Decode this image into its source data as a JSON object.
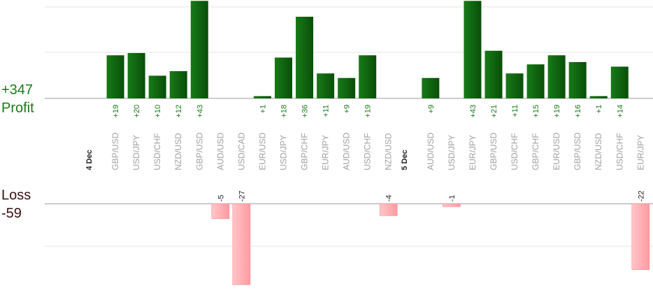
{
  "summary": {
    "profit_total": "+347",
    "profit_label": "Profit",
    "loss_label": "Loss",
    "loss_total": "-59"
  },
  "colors": {
    "profit_bar": "#0f6a0f",
    "loss_bar": "#ffb0b4",
    "profit_text": "#1b7a1b",
    "loss_text": "#3a1010",
    "axis_label": "#a0a0a0",
    "grid": "#e6e6e6"
  },
  "chart_data": {
    "type": "bar",
    "groups": [
      {
        "date_label": "4 Dec",
        "trades": [
          {
            "pair": "GBP/USD",
            "value": 19
          },
          {
            "pair": "USD/JPY",
            "value": 20
          },
          {
            "pair": "USD/CHF",
            "value": 10
          },
          {
            "pair": "NZD/USD",
            "value": 12
          },
          {
            "pair": "GBP/USD",
            "value": 43
          },
          {
            "pair": "AUD/USD",
            "value": -5
          },
          {
            "pair": "USD/CAD",
            "value": -27
          },
          {
            "pair": "EUR/USD",
            "value": 1
          },
          {
            "pair": "USD/JPY",
            "value": 18
          },
          {
            "pair": "GBP/CHF",
            "value": 36
          },
          {
            "pair": "EUR/JPY",
            "value": 11
          },
          {
            "pair": "AUD/USD",
            "value": 9
          },
          {
            "pair": "USD/CHF",
            "value": 19
          },
          {
            "pair": "NZD/USD",
            "value": -4
          }
        ]
      },
      {
        "date_label": "5 Dec",
        "trades": [
          {
            "pair": "AUD/USD",
            "value": 9
          },
          {
            "pair": "USD/JPY",
            "value": -1
          },
          {
            "pair": "EUR/JPY",
            "value": 43
          },
          {
            "pair": "GBP/USD",
            "value": 21
          },
          {
            "pair": "USD/CHF",
            "value": 11
          },
          {
            "pair": "GBP/CHF",
            "value": 15
          },
          {
            "pair": "EUR/USD",
            "value": 19
          },
          {
            "pair": "GBP/USD",
            "value": 16
          },
          {
            "pair": "NZD/USD",
            "value": 1
          },
          {
            "pair": "USD/CHF",
            "value": 14
          },
          {
            "pair": "EUR/JPY",
            "value": -22
          }
        ]
      }
    ]
  }
}
